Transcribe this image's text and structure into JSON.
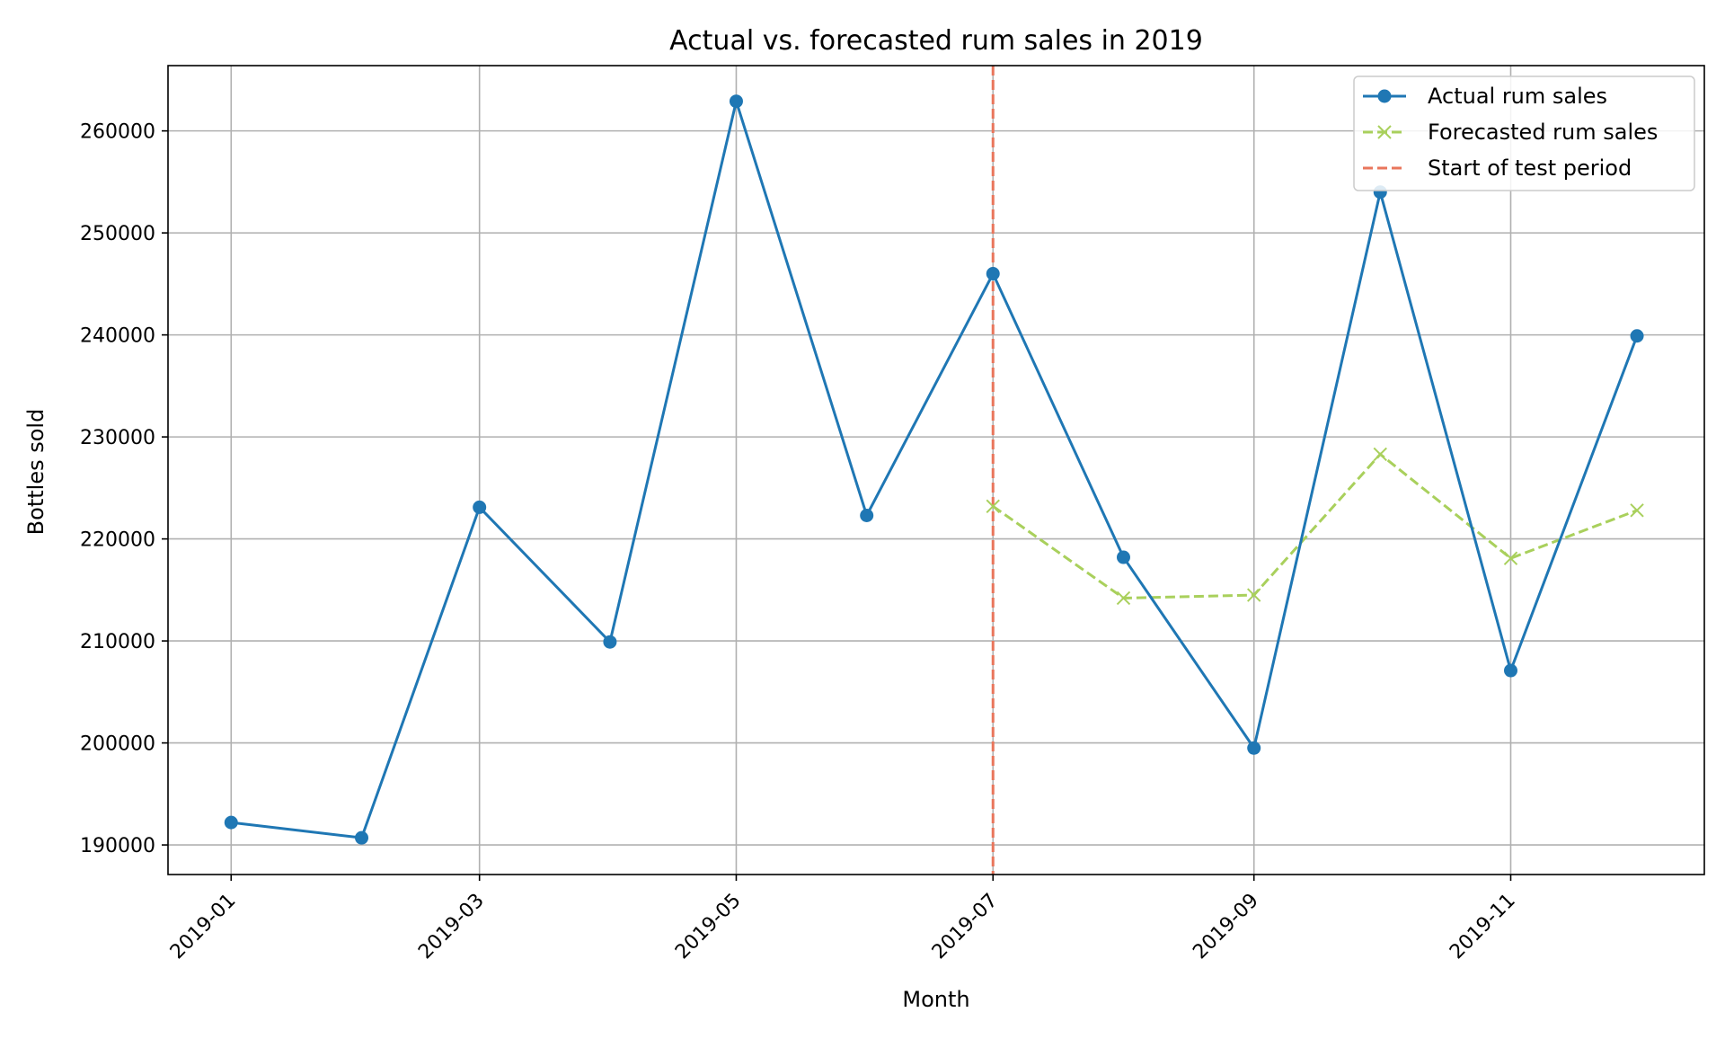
{
  "chart_data": {
    "type": "line",
    "title": "Actual vs. forecasted rum sales in 2019",
    "xlabel": "Month",
    "ylabel": "Bottles sold",
    "x_tick_labels": [
      "2019-01",
      "2019-03",
      "2019-05",
      "2019-07",
      "2019-09",
      "2019-11"
    ],
    "y_tick_labels": [
      "190000",
      "200000",
      "210000",
      "220000",
      "230000",
      "240000",
      "250000",
      "260000"
    ],
    "x_tick_dates": [
      "2019-01-01",
      "2019-03-01",
      "2019-05-01",
      "2019-07-01",
      "2019-09-01",
      "2019-11-01"
    ],
    "y_tick_values": [
      190000,
      200000,
      210000,
      220000,
      230000,
      240000,
      250000,
      260000
    ],
    "xlim": [
      "2018-12-17",
      "2019-12-17"
    ],
    "ylim": [
      187100,
      266400
    ],
    "grid": true,
    "legend_position": "top-right",
    "series": [
      {
        "name": "Actual rum sales",
        "color": "#1f77b4",
        "marker": "circle",
        "linestyle": "solid",
        "x": [
          "2019-01-01",
          "2019-02-01",
          "2019-03-01",
          "2019-04-01",
          "2019-05-01",
          "2019-06-01",
          "2019-07-01",
          "2019-08-01",
          "2019-09-01",
          "2019-10-01",
          "2019-11-01",
          "2019-12-01"
        ],
        "values": [
          192200,
          190700,
          223100,
          209900,
          262900,
          222300,
          246000,
          218200,
          199500,
          254000,
          207100,
          239900
        ]
      },
      {
        "name": "Forecasted rum sales",
        "color": "#a9d05c",
        "marker": "x",
        "linestyle": "dashed",
        "x": [
          "2019-07-01",
          "2019-08-01",
          "2019-09-01",
          "2019-10-01",
          "2019-11-01",
          "2019-12-01"
        ],
        "values": [
          223200,
          214200,
          214500,
          228300,
          218100,
          222800
        ]
      }
    ],
    "vertical_line": {
      "name": "Start of test period",
      "x": "2019-07-01",
      "color": "#e9765c",
      "linestyle": "dashed"
    }
  }
}
